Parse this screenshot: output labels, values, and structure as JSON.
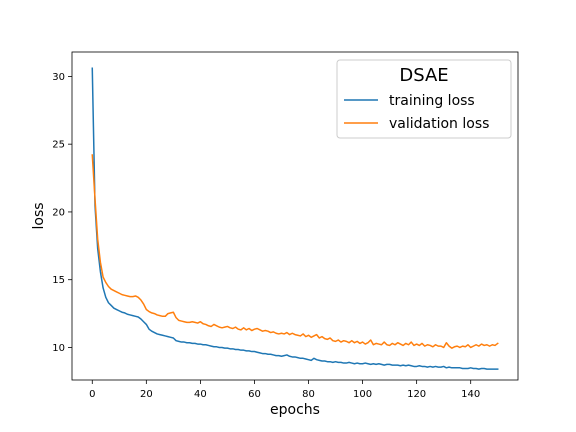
{
  "chart_data": {
    "type": "line",
    "title": "",
    "xlabel": "epochs",
    "ylabel": "loss",
    "xlim": [
      -7.5,
      157.5
    ],
    "ylim": [
      7.6,
      31.8
    ],
    "xticks": [
      0,
      20,
      40,
      60,
      80,
      100,
      120,
      140
    ],
    "yticks": [
      10,
      15,
      20,
      25,
      30
    ],
    "grid": false,
    "legend": {
      "title": "DSAE",
      "position": "top-right"
    },
    "x": [
      0,
      1,
      2,
      3,
      4,
      5,
      6,
      7,
      8,
      9,
      10,
      11,
      12,
      13,
      14,
      15,
      16,
      17,
      18,
      19,
      20,
      21,
      22,
      23,
      24,
      25,
      26,
      27,
      28,
      29,
      30,
      31,
      32,
      33,
      34,
      35,
      36,
      37,
      38,
      39,
      40,
      41,
      42,
      43,
      44,
      45,
      46,
      47,
      48,
      49,
      50,
      51,
      52,
      53,
      54,
      55,
      56,
      57,
      58,
      59,
      60,
      61,
      62,
      63,
      64,
      65,
      66,
      67,
      68,
      69,
      70,
      71,
      72,
      73,
      74,
      75,
      76,
      77,
      78,
      79,
      80,
      81,
      82,
      83,
      84,
      85,
      86,
      87,
      88,
      89,
      90,
      91,
      92,
      93,
      94,
      95,
      96,
      97,
      98,
      99,
      100,
      101,
      102,
      103,
      104,
      105,
      106,
      107,
      108,
      109,
      110,
      111,
      112,
      113,
      114,
      115,
      116,
      117,
      118,
      119,
      120,
      121,
      122,
      123,
      124,
      125,
      126,
      127,
      128,
      129,
      130,
      131,
      132,
      133,
      134,
      135,
      136,
      137,
      138,
      139,
      140,
      141,
      142,
      143,
      144,
      145,
      146,
      147,
      148,
      149,
      150
    ],
    "series": [
      {
        "name": "training loss",
        "color": "#1f77b4",
        "values": [
          30.6,
          20.5,
          17.3,
          15.6,
          14.4,
          13.7,
          13.3,
          13.1,
          12.9,
          12.8,
          12.7,
          12.6,
          12.55,
          12.45,
          12.4,
          12.35,
          12.3,
          12.25,
          12.1,
          11.9,
          11.7,
          11.35,
          11.2,
          11.1,
          11.0,
          10.95,
          10.9,
          10.85,
          10.8,
          10.75,
          10.7,
          10.5,
          10.45,
          10.4,
          10.4,
          10.35,
          10.35,
          10.3,
          10.3,
          10.25,
          10.25,
          10.2,
          10.2,
          10.15,
          10.1,
          10.05,
          10.05,
          10.0,
          10.0,
          9.95,
          9.95,
          9.9,
          9.9,
          9.85,
          9.85,
          9.8,
          9.8,
          9.75,
          9.75,
          9.7,
          9.7,
          9.65,
          9.6,
          9.55,
          9.55,
          9.5,
          9.5,
          9.45,
          9.4,
          9.4,
          9.35,
          9.4,
          9.45,
          9.35,
          9.3,
          9.3,
          9.25,
          9.2,
          9.2,
          9.15,
          9.1,
          9.05,
          9.2,
          9.1,
          9.05,
          9.0,
          9.0,
          8.95,
          8.95,
          8.9,
          8.95,
          8.9,
          8.9,
          8.85,
          8.85,
          8.9,
          8.85,
          8.8,
          8.85,
          8.8,
          8.8,
          8.85,
          8.8,
          8.75,
          8.8,
          8.75,
          8.8,
          8.75,
          8.7,
          8.75,
          8.75,
          8.7,
          8.7,
          8.7,
          8.65,
          8.7,
          8.65,
          8.7,
          8.65,
          8.6,
          8.6,
          8.65,
          8.6,
          8.6,
          8.55,
          8.6,
          8.55,
          8.6,
          8.55,
          8.55,
          8.6,
          8.5,
          8.55,
          8.5,
          8.5,
          8.5,
          8.5,
          8.45,
          8.45,
          8.45,
          8.5,
          8.45,
          8.45,
          8.4,
          8.45,
          8.45,
          8.4,
          8.4,
          8.4,
          8.4,
          8.4
        ]
      },
      {
        "name": "validation loss",
        "color": "#ff7f0e",
        "values": [
          24.2,
          21.0,
          18.0,
          16.3,
          15.2,
          14.8,
          14.5,
          14.3,
          14.2,
          14.1,
          14.0,
          13.9,
          13.85,
          13.8,
          13.75,
          13.75,
          13.8,
          13.7,
          13.5,
          13.2,
          12.8,
          12.65,
          12.55,
          12.5,
          12.4,
          12.35,
          12.3,
          12.3,
          12.5,
          12.55,
          12.6,
          12.2,
          12.0,
          11.95,
          11.9,
          11.85,
          11.85,
          11.9,
          11.85,
          11.8,
          11.9,
          11.75,
          11.7,
          11.6,
          11.55,
          11.7,
          11.6,
          11.5,
          11.45,
          11.5,
          11.55,
          11.45,
          11.4,
          11.5,
          11.35,
          11.3,
          11.45,
          11.3,
          11.4,
          11.25,
          11.35,
          11.4,
          11.3,
          11.2,
          11.25,
          11.2,
          11.1,
          11.15,
          11.05,
          11.0,
          11.05,
          11.0,
          11.1,
          10.95,
          11.05,
          10.95,
          10.9,
          10.85,
          11.0,
          10.8,
          10.9,
          10.75,
          10.85,
          10.95,
          10.7,
          10.8,
          10.65,
          10.6,
          10.7,
          10.5,
          10.45,
          10.55,
          10.4,
          10.5,
          10.45,
          10.35,
          10.5,
          10.35,
          10.45,
          10.3,
          10.4,
          10.25,
          10.35,
          10.55,
          10.2,
          10.3,
          10.25,
          10.2,
          10.4,
          10.2,
          10.15,
          10.3,
          10.2,
          10.35,
          10.25,
          10.15,
          10.3,
          10.2,
          10.4,
          10.15,
          10.25,
          10.15,
          10.3,
          10.1,
          10.2,
          10.15,
          10.05,
          10.2,
          10.1,
          10.1,
          10.0,
          10.35,
          10.1,
          9.95,
          10.05,
          10.1,
          10.0,
          10.1,
          10.05,
          10.2,
          10.0,
          10.1,
          10.2,
          10.1,
          10.25,
          10.15,
          10.2,
          10.1,
          10.2,
          10.15,
          10.3
        ]
      }
    ]
  }
}
